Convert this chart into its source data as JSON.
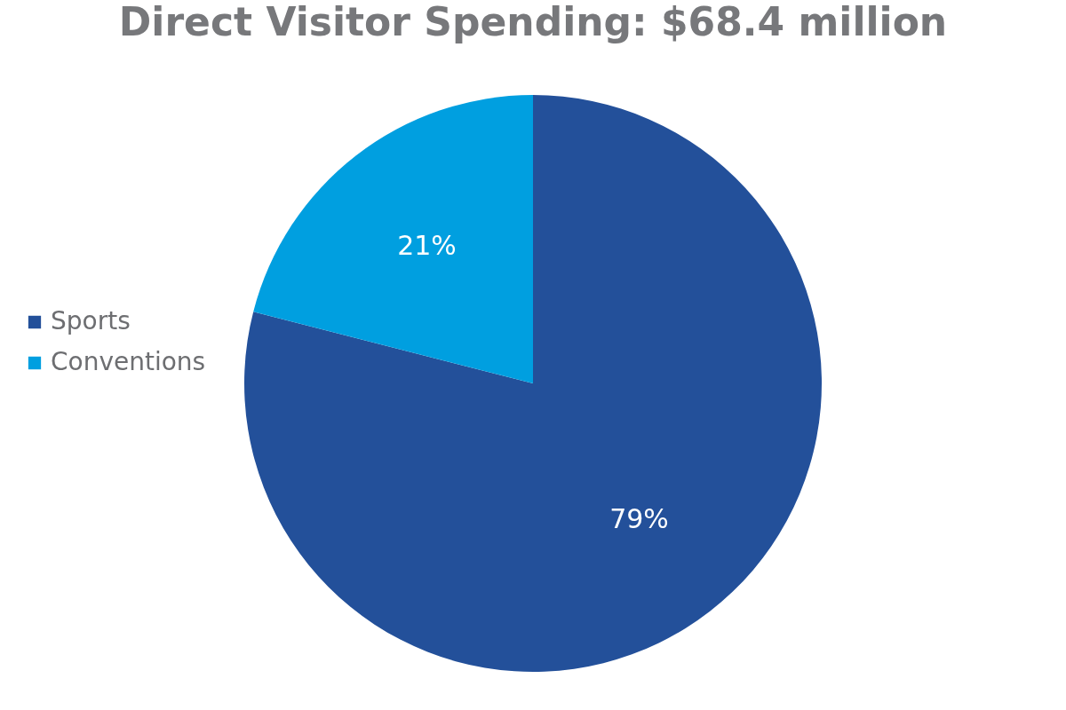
{
  "chart_data": {
    "type": "pie",
    "title": "Direct Visitor Spending: $68.4 million",
    "categories": [
      "Sports",
      "Conventions"
    ],
    "values": [
      79,
      21
    ],
    "colors": [
      "#23509a",
      "#009fe0"
    ],
    "value_labels": [
      "79%",
      "21%"
    ],
    "legend": "left"
  }
}
